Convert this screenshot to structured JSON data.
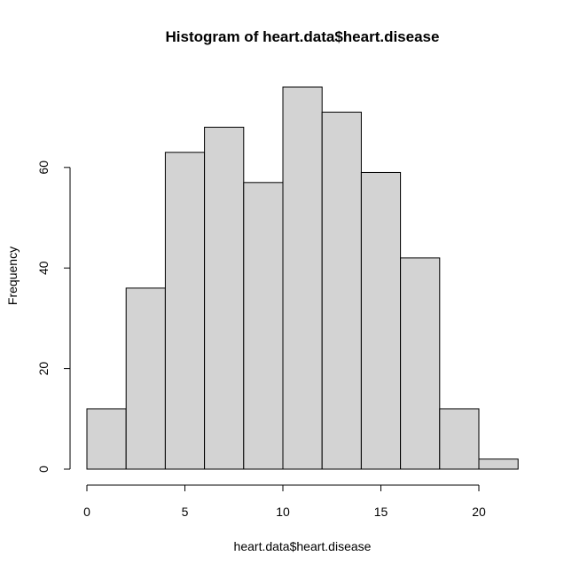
{
  "chart_data": {
    "type": "bar",
    "title": "Histogram of heart.data$heart.disease",
    "xlabel": "heart.data$heart.disease",
    "ylabel": "Frequency",
    "bins": [
      {
        "x0": 0,
        "x1": 2,
        "count": 12
      },
      {
        "x0": 2,
        "x1": 4,
        "count": 36
      },
      {
        "x0": 4,
        "x1": 6,
        "count": 63
      },
      {
        "x0": 6,
        "x1": 8,
        "count": 68
      },
      {
        "x0": 8,
        "x1": 10,
        "count": 57
      },
      {
        "x0": 10,
        "x1": 12,
        "count": 76
      },
      {
        "x0": 12,
        "x1": 14,
        "count": 71
      },
      {
        "x0": 14,
        "x1": 16,
        "count": 59
      },
      {
        "x0": 16,
        "x1": 18,
        "count": 42
      },
      {
        "x0": 18,
        "x1": 20,
        "count": 12
      },
      {
        "x0": 20,
        "x1": 22,
        "count": 2
      }
    ],
    "x_ticks": [
      0,
      5,
      10,
      15,
      20
    ],
    "x_tick_labels": [
      "0",
      "5",
      "10",
      "15",
      "20"
    ],
    "y_ticks": [
      0,
      20,
      40,
      60
    ],
    "y_tick_labels": [
      "0",
      "20",
      "40",
      "60"
    ],
    "xlim": [
      0,
      22
    ],
    "ylim": [
      0,
      76
    ],
    "grid": false,
    "bar_color": "#d3d3d3",
    "edge_color": "#000000"
  }
}
